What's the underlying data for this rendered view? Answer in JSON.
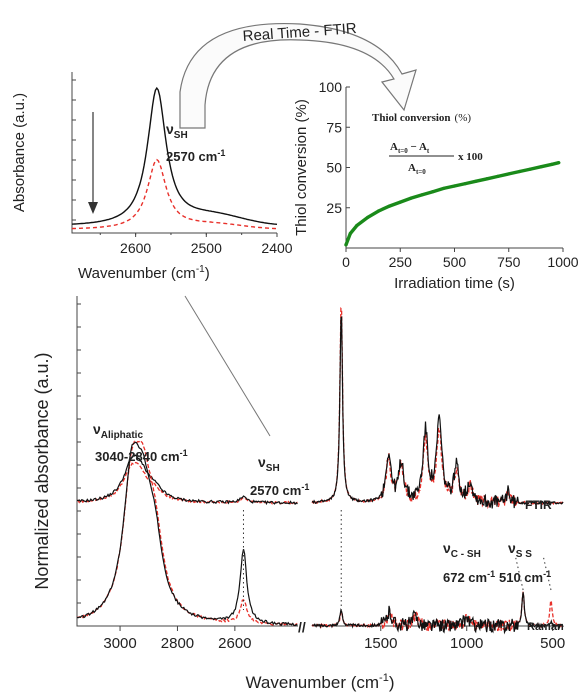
{
  "colors": {
    "black_series": "#111111",
    "red_series": "#e8302a",
    "green_series": "#1a8a1a",
    "arrow": "#777777"
  },
  "banner": "Real Time - FTIR",
  "chart_data": [
    {
      "id": "inset-sh-band",
      "type": "line",
      "xlabel": "Wavenumber (cm",
      "xlabel_sup": "-1",
      "xlabel_end": ")",
      "ylabel": "Absorbance (a.u.)",
      "xlim": [
        2690,
        2400
      ],
      "xticks": [
        "2600",
        "2500",
        "2400"
      ],
      "xtick_values": [
        2600,
        2500,
        2400
      ],
      "ylim": [
        0,
        1
      ],
      "annotation": {
        "nu": "ν",
        "sub": "SH",
        "value": "2570 cm",
        "sup": "-1"
      },
      "series": [
        {
          "color": "black_series",
          "style": "solid",
          "center": 2570,
          "height": 0.85,
          "width": 16,
          "base": 0.04
        },
        {
          "color": "red_series",
          "style": "dashed",
          "center": 2570,
          "height": 0.43,
          "width": 16,
          "base": 0.02
        }
      ]
    },
    {
      "id": "thiol-conversion",
      "type": "scatter",
      "xlabel": "Irradiation time (s)",
      "ylabel": "Thiol conversion (%)",
      "xlim": [
        0,
        1000
      ],
      "ylim": [
        0,
        100
      ],
      "xticks": [
        "0",
        "250",
        "500",
        "750",
        "1000"
      ],
      "xtick_values": [
        0,
        250,
        500,
        750,
        1000
      ],
      "yticks": [
        "25",
        "50",
        "75",
        "100"
      ],
      "ytick_values": [
        25,
        50,
        75,
        100
      ],
      "title": "Thiol conversion",
      "title_unit": "(%)",
      "formula": {
        "numerator": "A",
        "num_sub1": "t=0",
        "minus": " − A",
        "num_sub2": "t",
        "denominator": "A",
        "den_sub": "t=0",
        "times": "x 100"
      },
      "series": [
        {
          "color": "green_series",
          "points": [
            [
              0,
              2
            ],
            [
              20,
              9
            ],
            [
              50,
              14
            ],
            [
              100,
              19
            ],
            [
              150,
              23
            ],
            [
              200,
              26
            ],
            [
              250,
              28.5
            ],
            [
              300,
              31
            ],
            [
              350,
              33
            ],
            [
              400,
              35
            ],
            [
              450,
              37
            ],
            [
              500,
              38.5
            ],
            [
              550,
              40
            ],
            [
              600,
              41.5
            ],
            [
              650,
              43
            ],
            [
              700,
              44.5
            ],
            [
              750,
              46
            ],
            [
              800,
              47.5
            ],
            [
              850,
              49
            ],
            [
              900,
              50.5
            ],
            [
              950,
              52
            ],
            [
              980,
              53
            ]
          ]
        }
      ]
    },
    {
      "id": "ftir-raman-spectra",
      "type": "line",
      "xlabel": "Wavenumber (cm",
      "xlabel_sup": "-1",
      "xlabel_end": ")",
      "ylabel": "Normalized absorbance (a.u.)",
      "xticks": [
        "3000",
        "2800",
        "2600",
        "1500",
        "1000",
        "500"
      ],
      "xtick_values": [
        3000,
        2800,
        2600,
        1500,
        1000,
        500
      ],
      "axis_break": "//",
      "labels": {
        "ftir": "FTIR",
        "raman": "Raman"
      },
      "annotations": [
        {
          "nu": "ν",
          "sub": "Aliphatic",
          "value": "3040-2840 cm",
          "sup": "-1"
        },
        {
          "nu": "ν",
          "sub": "SH",
          "value": "2570 cm",
          "sup": "-1"
        },
        {
          "nu": "ν",
          "sub": "C - SH",
          "value": "672 cm",
          "sup": "-1"
        },
        {
          "nu": "ν",
          "sub": "S S",
          "value": "510 cm",
          "sup": "-1"
        }
      ],
      "series": [
        {
          "name": "FTIR",
          "offset": 0.56,
          "black": [
            [
              2960,
              0.16
            ],
            [
              2930,
              0.11
            ],
            [
              2880,
              0.05
            ],
            [
              2570,
              0.03
            ],
            [
              1730,
              1.0
            ],
            [
              1455,
              0.25
            ],
            [
              1380,
              0.2
            ],
            [
              1240,
              0.36
            ],
            [
              1160,
              0.42
            ],
            [
              1060,
              0.18
            ],
            [
              980,
              0.1
            ],
            [
              760,
              0.08
            ]
          ],
          "red": [
            [
              2960,
              0.14
            ],
            [
              2930,
              0.09
            ],
            [
              2880,
              0.04
            ],
            [
              2570,
              0.02
            ],
            [
              1730,
              1.05
            ],
            [
              1455,
              0.22
            ],
            [
              1380,
              0.18
            ],
            [
              1240,
              0.31
            ],
            [
              1160,
              0.37
            ],
            [
              1060,
              0.15
            ],
            [
              980,
              0.08
            ],
            [
              760,
              0.07
            ]
          ]
        },
        {
          "name": "Raman",
          "offset": 0.0,
          "black": [
            [
              2960,
              0.66
            ],
            [
              2920,
              0.45
            ],
            [
              2880,
              0.32
            ],
            [
              2570,
              0.38
            ],
            [
              1730,
              0.08
            ],
            [
              1450,
              0.07
            ],
            [
              1300,
              0.05
            ],
            [
              1000,
              0.04
            ],
            [
              672,
              0.18
            ],
            [
              510,
              0.02
            ]
          ],
          "red": [
            [
              2960,
              0.62
            ],
            [
              2920,
              0.5
            ],
            [
              2880,
              0.35
            ],
            [
              2570,
              0.12
            ],
            [
              1730,
              0.07
            ],
            [
              1450,
              0.06
            ],
            [
              1300,
              0.05
            ],
            [
              1000,
              0.04
            ],
            [
              672,
              0.17
            ],
            [
              510,
              0.14
            ]
          ]
        }
      ]
    }
  ]
}
